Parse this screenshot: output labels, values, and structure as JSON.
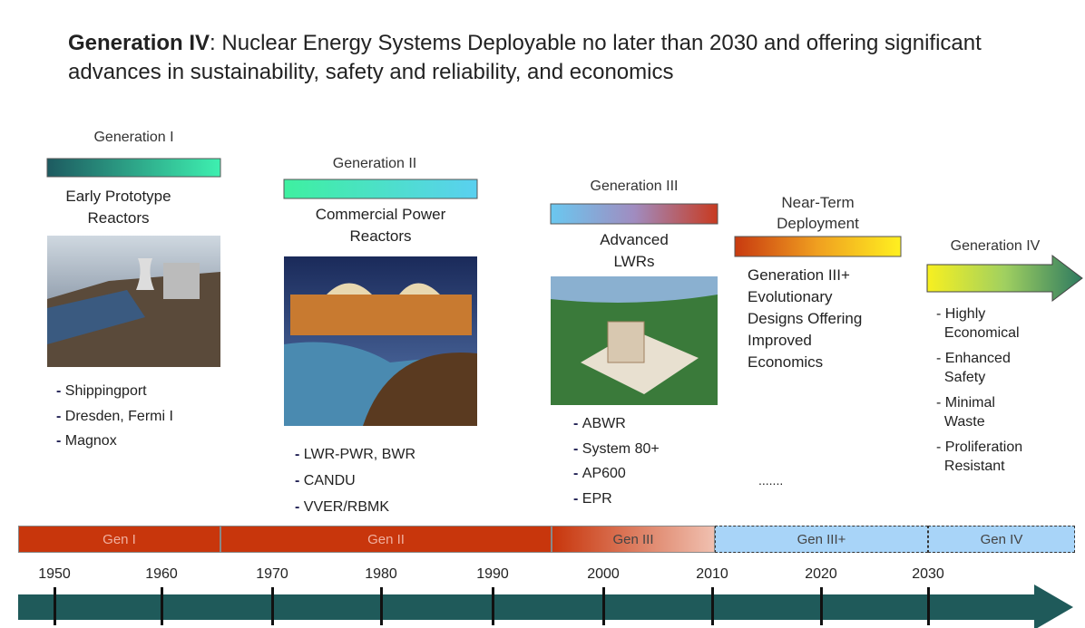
{
  "title": {
    "bold": "Generation IV",
    "rest": ": Nuclear Energy Systems Deployable no later than 2030 and offering significant advances in sustainability, safety and reliability, and economics"
  },
  "generations": [
    {
      "label": "Generation I",
      "description": [
        "Early Prototype",
        "Reactors"
      ],
      "items": [
        "Shippingport",
        "Dresden, Fermi I",
        "Magnox"
      ]
    },
    {
      "label": "Generation II",
      "description": [
        "Commercial Power",
        "Reactors"
      ],
      "items": [
        "LWR-PWR, BWR",
        "CANDU",
        "VVER/RBMK"
      ]
    },
    {
      "label": "Generation III",
      "description": [
        "Advanced",
        "LWRs"
      ],
      "items": [
        "ABWR",
        "System 80+",
        "AP600",
        "EPR"
      ]
    },
    {
      "label": [
        "Near-Term",
        "Deployment"
      ],
      "description": [
        "Generation III+",
        "Evolutionary",
        "Designs Offering",
        "Improved",
        "Economics"
      ],
      "items": [
        "......."
      ]
    },
    {
      "label": "Generation IV",
      "items": [
        [
          "Highly",
          "Economical"
        ],
        [
          "Enhanced",
          "Safety"
        ],
        [
          "Minimal",
          "Waste"
        ],
        [
          "Proliferation",
          "Resistant"
        ]
      ]
    }
  ],
  "timeline": {
    "bands": [
      "Gen I",
      "Gen II",
      "Gen III",
      "Gen III+",
      "Gen IV"
    ],
    "years": [
      "1950",
      "1960",
      "1970",
      "1980",
      "1990",
      "2000",
      "2010",
      "2020",
      "2030"
    ]
  }
}
